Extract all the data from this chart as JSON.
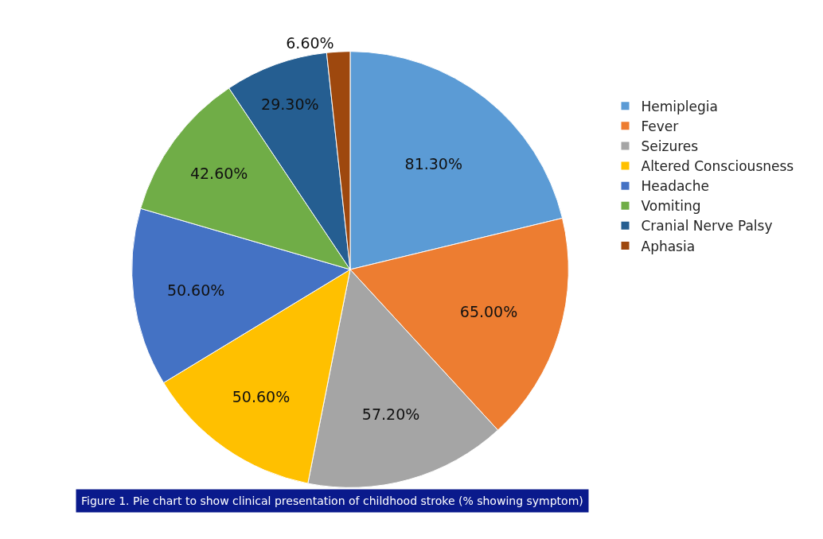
{
  "chart_data": {
    "type": "pie",
    "categories": [
      "Hemiplegia",
      "Fever",
      "Seizures",
      "Altered Consciousness",
      "Headache",
      "Vomiting",
      "Cranial Nerve Palsy",
      "Aphasia"
    ],
    "values": [
      81.3,
      65.0,
      57.2,
      50.6,
      50.6,
      42.6,
      29.3,
      6.6
    ],
    "value_labels": [
      "81.30%",
      "65.00%",
      "57.20%",
      "50.60%",
      "50.60%",
      "42.60%",
      "29.30%",
      "6.60%"
    ],
    "colors": [
      "#5b9bd5",
      "#ed7d31",
      "#a5a5a5",
      "#ffc000",
      "#4472c4",
      "#70ad47",
      "#255e91",
      "#9e480e"
    ],
    "legend": "right",
    "annotations": [
      "Figure 1. Pie chart to show clinical presentation of childhood stroke (% showing symptom)"
    ]
  }
}
